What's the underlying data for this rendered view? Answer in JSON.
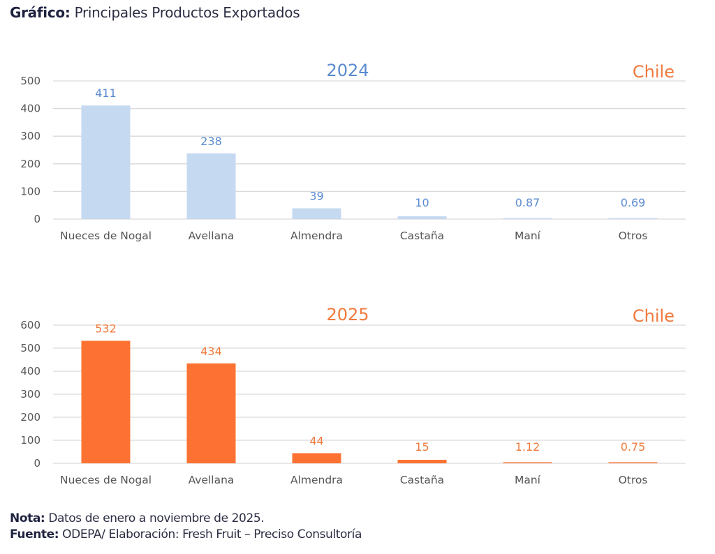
{
  "heading": {
    "bold": "Gráfico:",
    "text": " Principales Productos Exportados"
  },
  "footer": {
    "note_bold": "Nota:",
    "note_text": " Datos de enero a noviembre de 2025.",
    "source_bold": "Fuente:",
    "source_text": " ODEPA/ Elaboración: Fresh Fruit – Preciso Consultoría"
  },
  "colors": {
    "blue_bar": "#c5d9f1",
    "blue_text": "#5b8bd0",
    "orange_bar": "#fd7232",
    "orange_text": "#f07a3c",
    "grid": "#d9d9d9"
  },
  "chart_data": [
    {
      "type": "bar",
      "title": "2024",
      "corner_label": "Chile",
      "categories": [
        "Nueces de Nogal",
        "Avellana",
        "Almendra",
        "Castaña",
        "Maní",
        "Otros"
      ],
      "values": [
        411,
        238,
        39,
        10,
        0.87,
        0.69
      ],
      "value_labels": [
        "411",
        "238",
        "39",
        "10",
        "0.87",
        "0.69"
      ],
      "yticks": [
        0,
        100,
        200,
        300,
        400,
        500
      ],
      "ylim": [
        0,
        500
      ],
      "grid": true,
      "xlabel": "",
      "ylabel": "",
      "bar_color": "#c5d9f1",
      "label_color": "#5b8bd0"
    },
    {
      "type": "bar",
      "title": "2025",
      "corner_label": "Chile",
      "categories": [
        "Nueces de Nogal",
        "Avellana",
        "Almendra",
        "Castaña",
        "Maní",
        "Otros"
      ],
      "values": [
        532,
        434,
        44,
        15,
        1.12,
        0.75
      ],
      "value_labels": [
        "532",
        "434",
        "44",
        "15",
        "1.12",
        "0.75"
      ],
      "yticks": [
        0,
        100,
        200,
        300,
        400,
        500,
        600
      ],
      "ylim": [
        0,
        600
      ],
      "grid": true,
      "xlabel": "",
      "ylabel": "",
      "bar_color": "#fd7232",
      "label_color": "#f07a3c"
    }
  ]
}
